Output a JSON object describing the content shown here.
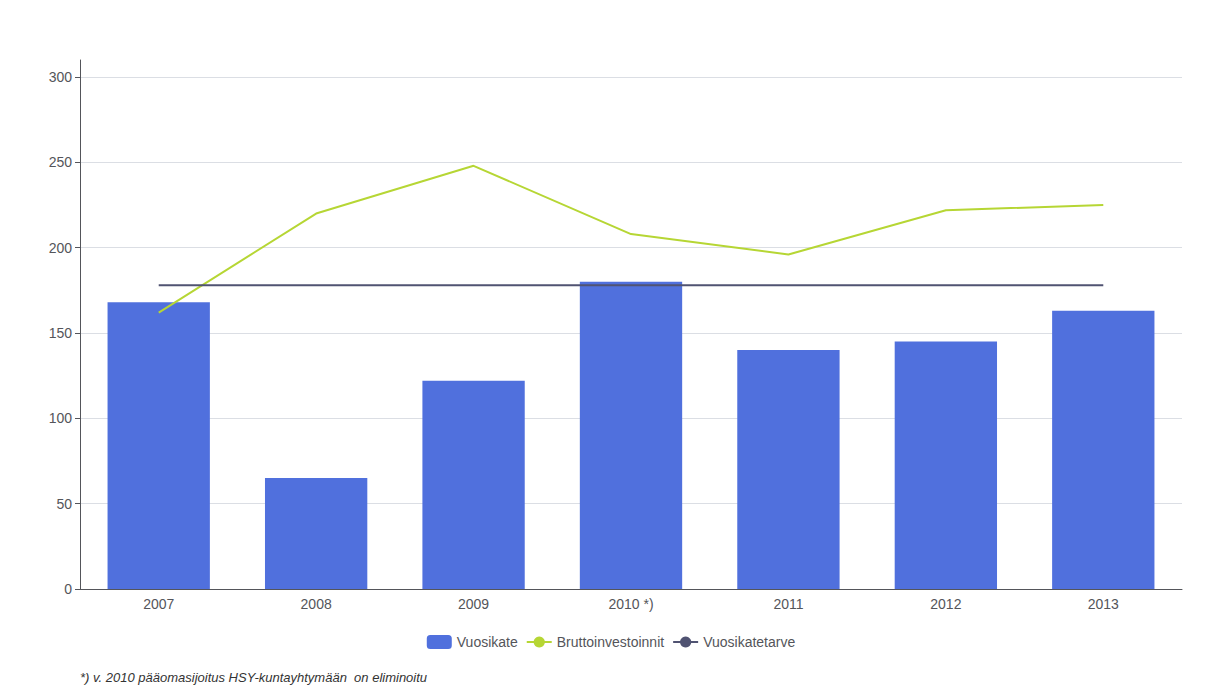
{
  "chart_data": {
    "type": "bar",
    "categories": [
      "2007",
      "2008",
      "2009",
      "2010 *)",
      "2011",
      "2012",
      "2013"
    ],
    "series": [
      {
        "name": "Vuosikate",
        "type": "bar",
        "values": [
          168,
          65,
          122,
          180,
          140,
          145,
          163
        ]
      },
      {
        "name": "Bruttoinvestoinnit",
        "type": "line",
        "values": [
          162,
          220,
          248,
          208,
          196,
          222,
          225
        ]
      },
      {
        "name": "Vuosikatetarve",
        "type": "line",
        "values": [
          178,
          178,
          178,
          178,
          178,
          178,
          178
        ]
      }
    ],
    "ylim": [
      0,
      310
    ],
    "yticks": [
      0,
      50,
      100,
      150,
      200,
      250,
      300
    ],
    "grid": true,
    "legend": "bottom",
    "footnote": "*) v. 2010 pääomasijoitus HSY-kuntayhtymään  on eliminoitu"
  }
}
